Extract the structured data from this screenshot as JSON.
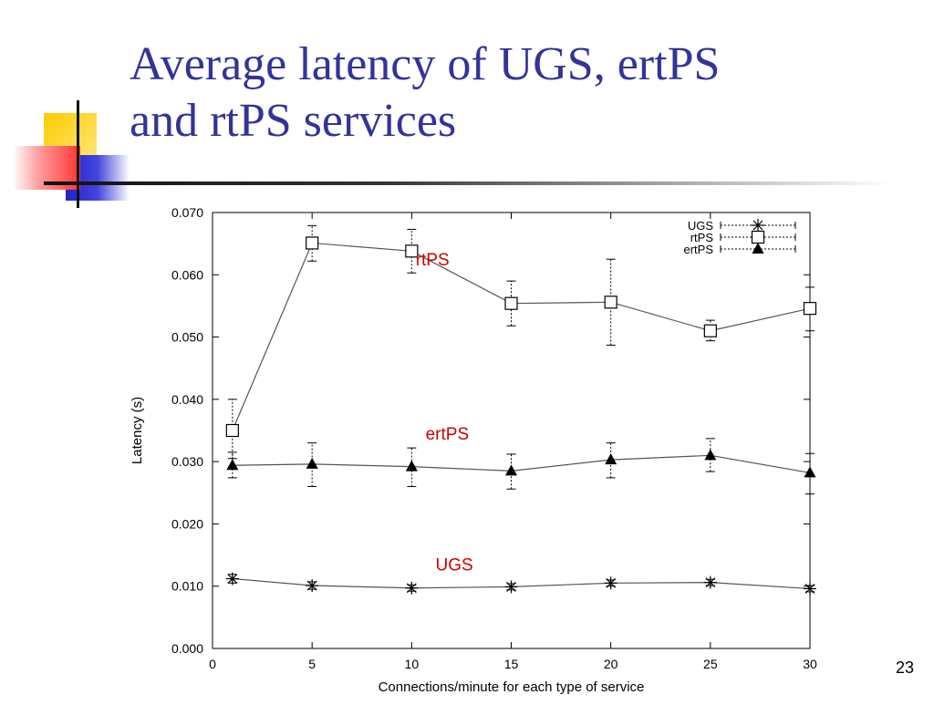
{
  "slide": {
    "title_lines": [
      "Average latency of UGS, ertPS",
      "and rtPS services"
    ],
    "page_number": "23",
    "colors": {
      "title": "#333399",
      "annotation": "#cc0000",
      "deco_yellow": "#ffcc00",
      "deco_red": "#ff3333",
      "deco_blue": "#3333cc"
    }
  },
  "chart_data": {
    "type": "line",
    "xlabel": "Connections/minute for each type of service",
    "ylabel": "Latency (s)",
    "xlim": [
      0,
      30
    ],
    "ylim": [
      0,
      0.07
    ],
    "x_ticks": [
      "0",
      "5",
      "10",
      "15",
      "20",
      "25",
      "30"
    ],
    "y_ticks": [
      "0.000",
      "0.010",
      "0.020",
      "0.030",
      "0.040",
      "0.050",
      "0.060",
      "0.070"
    ],
    "x_tick_values": [
      0,
      5,
      10,
      15,
      20,
      25,
      30
    ],
    "y_tick_values": [
      0,
      0.01,
      0.02,
      0.03,
      0.04,
      0.05,
      0.06,
      0.07
    ],
    "grid": false,
    "legend_position": "top-right",
    "x": [
      1,
      5,
      10,
      15,
      20,
      25,
      30
    ],
    "series": [
      {
        "name": "UGS",
        "marker": "asterisk",
        "values": [
          0.0112,
          0.0101,
          0.0097,
          0.0099,
          0.0105,
          0.0106,
          0.0096
        ],
        "err_low": [
          0.0105,
          0.0095,
          0.0092,
          0.0094,
          0.01,
          0.0101,
          0.0091
        ],
        "err_high": [
          0.0119,
          0.0107,
          0.0102,
          0.0104,
          0.011,
          0.0111,
          0.0101
        ]
      },
      {
        "name": "rtPS",
        "marker": "square",
        "values": [
          0.035,
          0.0651,
          0.0638,
          0.0554,
          0.0556,
          0.051,
          0.0546
        ],
        "err_low": [
          0.0305,
          0.0622,
          0.0603,
          0.0518,
          0.0487,
          0.0494,
          0.051
        ],
        "err_high": [
          0.04,
          0.0679,
          0.0673,
          0.059,
          0.0625,
          0.0527,
          0.058
        ]
      },
      {
        "name": "ertPS",
        "marker": "triangle",
        "values": [
          0.0294,
          0.0296,
          0.0292,
          0.0285,
          0.0303,
          0.031,
          0.0282
        ],
        "err_low": [
          0.0274,
          0.026,
          0.026,
          0.0256,
          0.0274,
          0.0284,
          0.0248
        ],
        "err_high": [
          0.0315,
          0.033,
          0.0322,
          0.0312,
          0.033,
          0.0337,
          0.0313
        ]
      }
    ],
    "annotations": [
      {
        "text": "rtPS",
        "x": 10.2,
        "y": 0.0615
      },
      {
        "text": "ertPS",
        "x": 10.7,
        "y": 0.0335
      },
      {
        "text": "UGS",
        "x": 11.2,
        "y": 0.0125
      }
    ]
  }
}
